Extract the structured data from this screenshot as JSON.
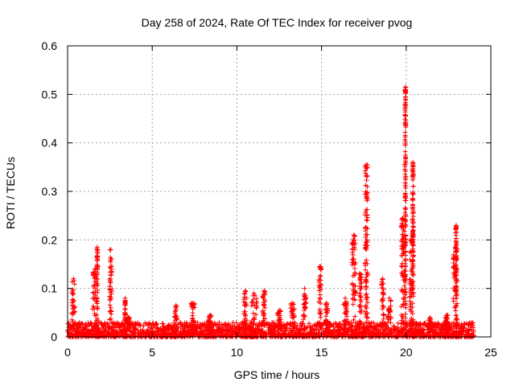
{
  "chart_data": {
    "type": "scatter",
    "title": "Day 258 of 2024, Rate Of TEC Index for receiver pvog",
    "xlabel": "GPS time / hours",
    "ylabel": "ROTI / TECUs",
    "xlim": [
      0,
      25
    ],
    "ylim": [
      0,
      0.6
    ],
    "xticks": [
      0,
      5,
      10,
      15,
      20,
      25
    ],
    "yticks": [
      0,
      0.1,
      0.2,
      0.3,
      0.4,
      0.5,
      0.6
    ],
    "xtick_labels": [
      "0",
      "5",
      "10",
      "15",
      "20",
      "25"
    ],
    "ytick_labels": [
      "0",
      "0.1",
      "0.2",
      "0.3",
      "0.4",
      "0.5",
      "0.6"
    ],
    "grid": true,
    "marker": "+",
    "color": "#ff0000",
    "baseline": {
      "x_start": 0,
      "x_end": 24,
      "y_min": 0,
      "y_max": 0.03
    },
    "bursts": [
      {
        "x": 0.35,
        "width": 0.2,
        "peak": 0.12
      },
      {
        "x": 1.6,
        "width": 0.25,
        "peak": 0.14
      },
      {
        "x": 1.75,
        "width": 0.05,
        "peak": 0.185
      },
      {
        "x": 2.55,
        "width": 0.15,
        "peak": 0.18
      },
      {
        "x": 3.4,
        "width": 0.05,
        "peak": 0.08
      },
      {
        "x": 3.6,
        "width": 0.1,
        "peak": 0.04
      },
      {
        "x": 6.4,
        "width": 0.15,
        "peak": 0.065
      },
      {
        "x": 7.4,
        "width": 0.2,
        "peak": 0.07
      },
      {
        "x": 8.4,
        "width": 0.2,
        "peak": 0.045
      },
      {
        "x": 10.5,
        "width": 0.2,
        "peak": 0.095
      },
      {
        "x": 11.0,
        "width": 0.4,
        "peak": 0.09
      },
      {
        "x": 11.6,
        "width": 0.15,
        "peak": 0.095
      },
      {
        "x": 12.5,
        "width": 0.2,
        "peak": 0.055
      },
      {
        "x": 13.3,
        "width": 0.25,
        "peak": 0.07
      },
      {
        "x": 14.0,
        "width": 0.2,
        "peak": 0.1
      },
      {
        "x": 14.9,
        "width": 0.15,
        "peak": 0.145
      },
      {
        "x": 15.3,
        "width": 0.2,
        "peak": 0.07
      },
      {
        "x": 16.4,
        "width": 0.2,
        "peak": 0.08
      },
      {
        "x": 16.9,
        "width": 0.2,
        "peak": 0.21
      },
      {
        "x": 17.3,
        "width": 0.15,
        "peak": 0.13
      },
      {
        "x": 17.65,
        "width": 0.15,
        "peak": 0.355
      },
      {
        "x": 18.6,
        "width": 0.15,
        "peak": 0.12
      },
      {
        "x": 19.0,
        "width": 0.2,
        "peak": 0.08
      },
      {
        "x": 19.8,
        "width": 0.2,
        "peak": 0.245
      },
      {
        "x": 19.95,
        "width": 0.05,
        "peak": 0.515
      },
      {
        "x": 20.3,
        "width": 0.2,
        "peak": 0.2
      },
      {
        "x": 20.4,
        "width": 0.05,
        "peak": 0.36
      },
      {
        "x": 21.4,
        "width": 0.15,
        "peak": 0.04
      },
      {
        "x": 22.4,
        "width": 0.15,
        "peak": 0.045
      },
      {
        "x": 22.9,
        "width": 0.25,
        "peak": 0.185
      },
      {
        "x": 22.95,
        "width": 0.05,
        "peak": 0.23
      }
    ]
  }
}
